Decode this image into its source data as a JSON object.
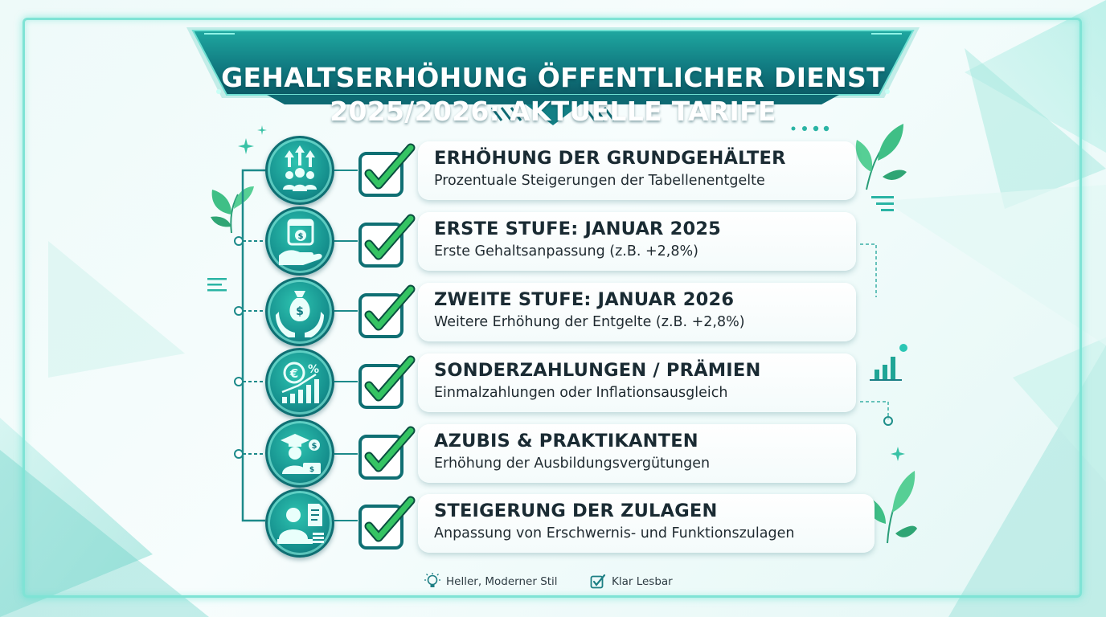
{
  "title": {
    "line1": "GEHALTSERHÖHUNG ÖFFENTLICHER DIENST",
    "line2": "2025/2026: AKTUELLE TARIFE"
  },
  "items": [
    {
      "title": "ERHÖHUNG DER GRUNDGEHÄLTER",
      "subtitle": "Prozentuale Steigerungen der Tabellenentgelte",
      "icon": "rising-people-icon"
    },
    {
      "title": "ERSTE STUFE: JANUAR 2025",
      "subtitle": "Erste Gehaltsanpassung (z.B. +2,8%)",
      "icon": "calendar-money-hand-icon"
    },
    {
      "title": "ZWEITE STUFE: JANUAR 2026",
      "subtitle": "Weitere Erhöhung der Entgelte (z.B. +2,8%)",
      "icon": "money-bag-hands-icon"
    },
    {
      "title": "SONDERZAHLUNGEN / PRÄMIEN",
      "subtitle": "Einmalzahlungen oder Inflationsausgleich",
      "icon": "euro-percent-chart-icon"
    },
    {
      "title": "AZUBIS & PRAKTIKANTEN",
      "subtitle": "Erhöhung der Ausbildungsvergütungen",
      "icon": "graduate-money-icon"
    },
    {
      "title": "STEIGERUNG DER ZULAGEN",
      "subtitle": "Anpassung von Erschwernis- und Funktionszulagen",
      "icon": "worker-document-icon"
    }
  ],
  "footer": {
    "style_label": "Heller, Moderner Stil",
    "readability_label": "Klar Lesbar",
    "style_icon": "lightbulb-icon",
    "readability_icon": "checkbox-icon"
  },
  "colors": {
    "accent": "#18a99a",
    "dark_teal": "#0d5f68",
    "check_green": "#2fbf5a",
    "frame_glow": "#7fe3d5"
  }
}
